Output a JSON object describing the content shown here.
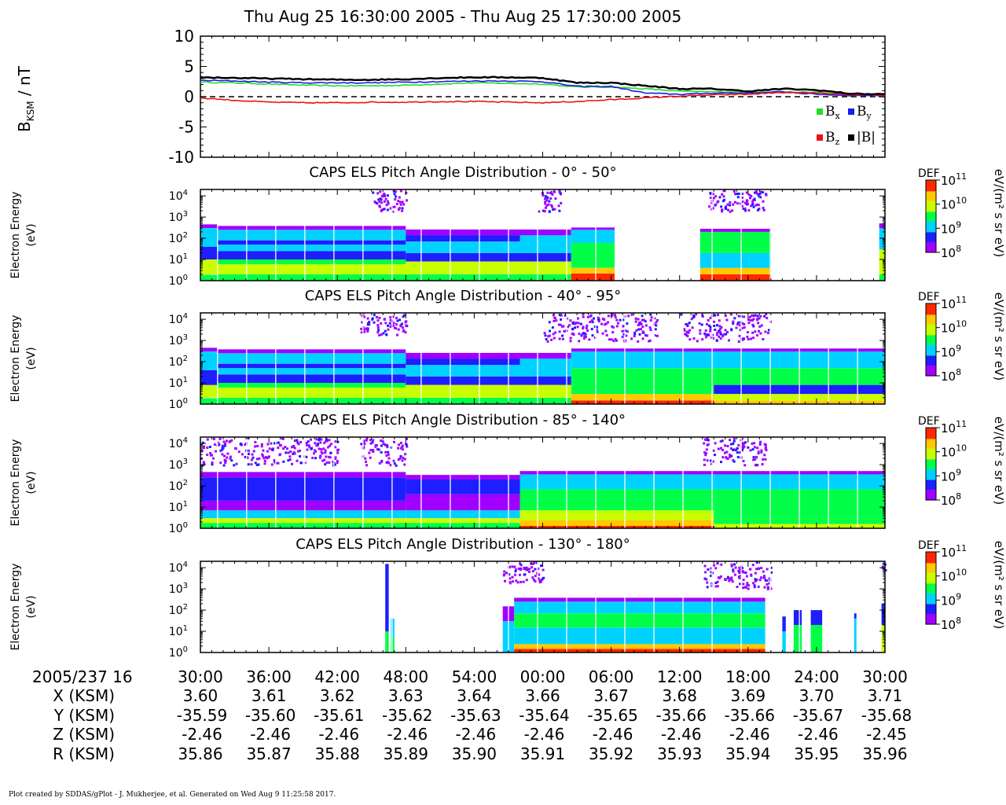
{
  "header": {
    "title": "Thu Aug 25 16:30:00 2005 - Thu Aug 25 17:30:00 2005"
  },
  "footer": {
    "credit": "Plot created by SDDAS/gPlot - J. Mukherjee, et al.  Generated on Wed Aug 9 11:25:58 2017."
  },
  "colors": {
    "bx": "#22dd22",
    "by": "#1a1aee",
    "bz": "#ee1111",
    "btot": "#000000",
    "colormap": [
      "#a000ff",
      "#1e1eff",
      "#00d2ff",
      "#00ff46",
      "#c8ff00",
      "#ffc800",
      "#ff2800"
    ]
  },
  "chart_data": [
    {
      "type": "line",
      "ylabel_main": "B",
      "ylabel_sub": "KSM",
      "ylabel_unit": " / nT",
      "ylim": [
        -10,
        10
      ],
      "yticks": [
        "10",
        "5",
        "0",
        "-5",
        "-10"
      ],
      "zero_line": "dashed",
      "x": [
        0,
        3,
        6,
        9,
        12,
        15,
        18,
        21,
        24,
        27,
        30,
        33,
        36,
        39,
        42,
        45,
        48,
        51,
        54,
        57,
        60
      ],
      "series": [
        {
          "name": "B",
          "sub": "x",
          "color_key": "bx",
          "values": [
            2.4,
            2.3,
            2.1,
            1.9,
            1.8,
            1.8,
            1.9,
            2.1,
            2.3,
            2.2,
            2.1,
            1.6,
            1.6,
            1.3,
            0.9,
            0.8,
            0.8,
            0.8,
            0.7,
            0.4,
            0.3
          ]
        },
        {
          "name": "B",
          "sub": "y",
          "color_key": "by",
          "values": [
            2.7,
            2.6,
            2.4,
            2.3,
            2.3,
            2.3,
            2.4,
            2.5,
            2.6,
            2.6,
            2.5,
            1.7,
            1.7,
            0.6,
            0.4,
            0.6,
            0.6,
            0.8,
            0.4,
            0.2,
            0.2
          ]
        },
        {
          "name": "B",
          "sub": "z",
          "color_key": "bz",
          "values": [
            -0.2,
            -0.6,
            -0.9,
            -1.0,
            -1.0,
            -0.9,
            -0.9,
            -0.8,
            -0.8,
            -0.9,
            -1.0,
            -0.8,
            -0.5,
            -0.2,
            0.1,
            0.3,
            0.4,
            0.7,
            0.6,
            0.3,
            0.2
          ]
        },
        {
          "name": "|B|",
          "sub": "",
          "color_key": "btot",
          "values": [
            3.2,
            3.1,
            3.0,
            2.9,
            2.8,
            2.8,
            2.9,
            3.1,
            3.2,
            3.2,
            3.1,
            2.3,
            2.3,
            1.8,
            1.3,
            1.3,
            0.9,
            1.3,
            1.1,
            0.5,
            0.4
          ]
        }
      ]
    },
    {
      "type": "heatmap",
      "title": "CAPS ELS Pitch Angle Distribution - 0° - 50°",
      "ylabel": [
        "Electron Energy",
        "(eV)"
      ],
      "yscale": "log",
      "ylim": [
        1,
        20000
      ],
      "colorbar": {
        "label": "DEF",
        "unit": "eV/(m² s sr eV)",
        "ticks": [
          "10",
          "10",
          "10",
          "10"
        ],
        "exps": [
          "11",
          "10",
          "9",
          "8"
        ]
      },
      "bands": [
        {
          "t": [
            0,
            1.5
          ],
          "levels": [
            [
              1,
              1.9,
              3
            ],
            [
              2,
              10,
              4
            ],
            [
              10,
              40,
              1
            ],
            [
              40,
              300,
              2
            ],
            [
              300,
              450,
              0
            ]
          ]
        },
        {
          "t": [
            1.5,
            18
          ],
          "levels": [
            [
              1,
              2,
              3
            ],
            [
              2,
              6,
              4
            ],
            [
              6,
              10,
              3
            ],
            [
              10,
              25,
              1
            ],
            [
              25,
              50,
              2
            ],
            [
              50,
              80,
              1
            ],
            [
              80,
              250,
              2
            ],
            [
              250,
              380,
              0
            ]
          ]
        },
        {
          "t": [
            18,
            28
          ],
          "levels": [
            [
              1,
              2,
              3
            ],
            [
              2,
              8,
              4
            ],
            [
              8,
              20,
              1
            ],
            [
              20,
              70,
              2
            ],
            [
              70,
              140,
              1
            ],
            [
              140,
              260,
              0
            ]
          ]
        },
        {
          "t": [
            28,
            32.5
          ],
          "levels": [
            [
              1,
              2,
              3
            ],
            [
              2,
              8,
              4
            ],
            [
              8,
              20,
              1
            ],
            [
              20,
              140,
              2
            ],
            [
              140,
              260,
              0
            ]
          ]
        },
        {
          "t": [
            32.5,
            36.3
          ],
          "levels": [
            [
              1,
              2.2,
              6
            ],
            [
              2.2,
              4,
              5
            ],
            [
              4,
              60,
              3
            ],
            [
              60,
              250,
              2
            ],
            [
              250,
              320,
              0
            ]
          ]
        },
        {
          "t": [
            43.8,
            50
          ],
          "levels": [
            [
              1,
              2,
              6
            ],
            [
              2,
              4,
              5
            ],
            [
              4,
              20,
              2
            ],
            [
              20,
              200,
              3
            ],
            [
              200,
              280,
              0
            ]
          ]
        },
        {
          "t": [
            59.5,
            60
          ],
          "levels": [
            [
              1,
              2,
              3
            ],
            [
              2,
              30,
              4
            ],
            [
              30,
              300,
              2
            ],
            [
              300,
              500,
              0
            ]
          ]
        }
      ],
      "noise": [
        [
          15,
          18,
          2000,
          20000
        ],
        [
          29.5,
          31.5,
          2000,
          20000
        ],
        [
          44.5,
          49.5,
          2000,
          20000
        ]
      ]
    },
    {
      "type": "heatmap",
      "title": "CAPS ELS Pitch Angle Distribution - 40° - 95°",
      "ylabel": [
        "Electron Energy",
        "(eV)"
      ],
      "yscale": "log",
      "ylim": [
        1,
        20000
      ],
      "colorbar": {
        "label": "DEF",
        "unit": "eV/(m² s sr eV)",
        "ticks": [
          "10",
          "10",
          "10",
          "10"
        ],
        "exps": [
          "11",
          "10",
          "9",
          "8"
        ]
      },
      "bands": [
        {
          "t": [
            0,
            1.5
          ],
          "levels": [
            [
              1,
              1.9,
              3
            ],
            [
              2,
              8,
              4
            ],
            [
              8,
              40,
              1
            ],
            [
              40,
              300,
              2
            ],
            [
              300,
              450,
              0
            ]
          ]
        },
        {
          "t": [
            1.5,
            18
          ],
          "levels": [
            [
              1,
              2,
              3
            ],
            [
              2,
              6,
              4
            ],
            [
              6,
              10,
              3
            ],
            [
              10,
              25,
              1
            ],
            [
              25,
              50,
              2
            ],
            [
              50,
              80,
              1
            ],
            [
              80,
              250,
              2
            ],
            [
              250,
              380,
              0
            ]
          ]
        },
        {
          "t": [
            18,
            28
          ],
          "levels": [
            [
              1,
              2,
              3
            ],
            [
              2,
              8,
              4
            ],
            [
              8,
              20,
              1
            ],
            [
              20,
              70,
              2
            ],
            [
              70,
              140,
              1
            ],
            [
              140,
              260,
              0
            ]
          ]
        },
        {
          "t": [
            28,
            32.5
          ],
          "levels": [
            [
              1,
              2,
              3
            ],
            [
              2,
              8,
              4
            ],
            [
              8,
              20,
              1
            ],
            [
              20,
              140,
              2
            ],
            [
              140,
              260,
              0
            ]
          ]
        },
        {
          "t": [
            32.5,
            45
          ],
          "levels": [
            [
              1,
              1.5,
              6
            ],
            [
              1.5,
              3,
              5
            ],
            [
              3,
              50,
              3
            ],
            [
              50,
              300,
              2
            ],
            [
              300,
              420,
              0
            ]
          ]
        },
        {
          "t": [
            45,
            60
          ],
          "levels": [
            [
              1,
              1.5,
              5
            ],
            [
              1.5,
              3,
              4
            ],
            [
              3,
              8,
              1
            ],
            [
              8,
              50,
              3
            ],
            [
              50,
              300,
              2
            ],
            [
              300,
              420,
              0
            ]
          ]
        }
      ],
      "noise": [
        [
          14,
          18,
          2000,
          20000
        ],
        [
          30,
          40,
          1000,
          20000
        ],
        [
          42,
          50,
          1000,
          20000
        ]
      ]
    },
    {
      "type": "heatmap",
      "title": "CAPS ELS Pitch Angle Distribution - 85° - 140°",
      "ylabel": [
        "Electron Energy",
        "(eV)"
      ],
      "yscale": "log",
      "ylim": [
        1,
        20000
      ],
      "colorbar": {
        "label": "DEF",
        "unit": "eV/(m² s sr eV)",
        "ticks": [
          "10",
          "10",
          "10",
          "10"
        ],
        "exps": [
          "11",
          "10",
          "9",
          "8"
        ]
      },
      "bands": [
        {
          "t": [
            0,
            18
          ],
          "levels": [
            [
              1,
              1.8,
              3
            ],
            [
              1.8,
              3,
              4
            ],
            [
              3,
              7,
              2
            ],
            [
              7,
              20,
              0
            ],
            [
              20,
              250,
              1
            ],
            [
              250,
              450,
              0
            ]
          ]
        },
        {
          "t": [
            18,
            28
          ],
          "levels": [
            [
              1,
              1.8,
              3
            ],
            [
              1.8,
              3,
              4
            ],
            [
              3,
              7,
              2
            ],
            [
              7,
              40,
              0
            ],
            [
              40,
              200,
              1
            ],
            [
              200,
              330,
              0
            ]
          ]
        },
        {
          "t": [
            28,
            45
          ],
          "levels": [
            [
              1,
              1.3,
              6
            ],
            [
              1.3,
              2.5,
              5
            ],
            [
              2.5,
              7,
              4
            ],
            [
              7,
              70,
              3
            ],
            [
              70,
              350,
              2
            ],
            [
              350,
              500,
              0
            ]
          ]
        },
        {
          "t": [
            45,
            60
          ],
          "levels": [
            [
              1,
              1.6,
              4
            ],
            [
              1.6,
              3,
              3
            ],
            [
              3,
              70,
              3
            ],
            [
              70,
              350,
              2
            ],
            [
              350,
              500,
              0
            ]
          ]
        }
      ],
      "noise": [
        [
          0,
          12,
          1000,
          20000
        ],
        [
          14,
          18,
          1000,
          20000
        ],
        [
          44,
          49.5,
          1000,
          20000
        ]
      ]
    },
    {
      "type": "heatmap",
      "title": "CAPS ELS Pitch Angle Distribution - 130° - 180°",
      "ylabel": [
        "Electron Energy",
        "(eV)"
      ],
      "yscale": "log",
      "ylim": [
        1,
        20000
      ],
      "colorbar": {
        "label": "DEF",
        "unit": "eV/(m² s sr eV)",
        "ticks": [
          "10",
          "10",
          "10",
          "10"
        ],
        "exps": [
          "11",
          "10",
          "9",
          "8"
        ]
      },
      "bands": [
        {
          "t": [
            16.2,
            16.5
          ],
          "levels": [
            [
              1,
              10,
              3
            ],
            [
              10,
              15000,
              1
            ]
          ]
        },
        {
          "t": [
            16.7,
            17.0
          ],
          "levels": [
            [
              1,
              5,
              3
            ],
            [
              5,
              40,
              2
            ]
          ]
        },
        {
          "t": [
            26.5,
            27.5
          ],
          "levels": [
            [
              1,
              30,
              2
            ],
            [
              30,
              150,
              0
            ]
          ]
        },
        {
          "t": [
            27.5,
            49.5
          ],
          "levels": [
            [
              1,
              1.5,
              6
            ],
            [
              1.5,
              2.5,
              5
            ],
            [
              2.5,
              15,
              2
            ],
            [
              15,
              70,
              3
            ],
            [
              70,
              250,
              2
            ],
            [
              250,
              380,
              0
            ]
          ]
        },
        {
          "t": [
            51,
            51.3
          ],
          "levels": [
            [
              1,
              10,
              2
            ],
            [
              10,
              50,
              1
            ]
          ]
        },
        {
          "t": [
            52,
            52.7
          ],
          "levels": [
            [
              1,
              20,
              3
            ],
            [
              20,
              100,
              1
            ]
          ]
        },
        {
          "t": [
            53.5,
            54.5
          ],
          "levels": [
            [
              1,
              20,
              3
            ],
            [
              20,
              100,
              1
            ]
          ]
        },
        {
          "t": [
            57.3,
            57.5
          ],
          "levels": [
            [
              1,
              40,
              2
            ],
            [
              40,
              70,
              1
            ]
          ]
        },
        {
          "t": [
            59.7,
            60
          ],
          "levels": [
            [
              1,
              20,
              4
            ],
            [
              20,
              200,
              1
            ]
          ]
        }
      ],
      "noise": [
        [
          26.5,
          30,
          2000,
          20000
        ],
        [
          44,
          50,
          1000,
          20000
        ],
        [
          59.7,
          60,
          5000,
          20000
        ]
      ]
    }
  ],
  "ephemeris": {
    "date_label": "2005/237 16",
    "row_labels": [
      "X (KSM)",
      "Y (KSM)",
      "Z (KSM)",
      "R (KSM)"
    ],
    "times": [
      "30:00",
      "36:00",
      "42:00",
      "48:00",
      "54:00",
      "00:00",
      "06:00",
      "12:00",
      "18:00",
      "24:00",
      "30:00"
    ],
    "X": [
      "3.60",
      "3.61",
      "3.62",
      "3.63",
      "3.64",
      "3.66",
      "3.67",
      "3.68",
      "3.69",
      "3.70",
      "3.71"
    ],
    "Y": [
      "-35.59",
      "-35.60",
      "-35.61",
      "-35.62",
      "-35.63",
      "-35.64",
      "-35.65",
      "-35.66",
      "-35.66",
      "-35.67",
      "-35.68"
    ],
    "Z": [
      "-2.46",
      "-2.46",
      "-2.46",
      "-2.46",
      "-2.46",
      "-2.46",
      "-2.46",
      "-2.46",
      "-2.46",
      "-2.46",
      "-2.45"
    ],
    "R": [
      "35.86",
      "35.87",
      "35.88",
      "35.89",
      "35.90",
      "35.91",
      "35.92",
      "35.93",
      "35.94",
      "35.95",
      "35.96"
    ]
  }
}
